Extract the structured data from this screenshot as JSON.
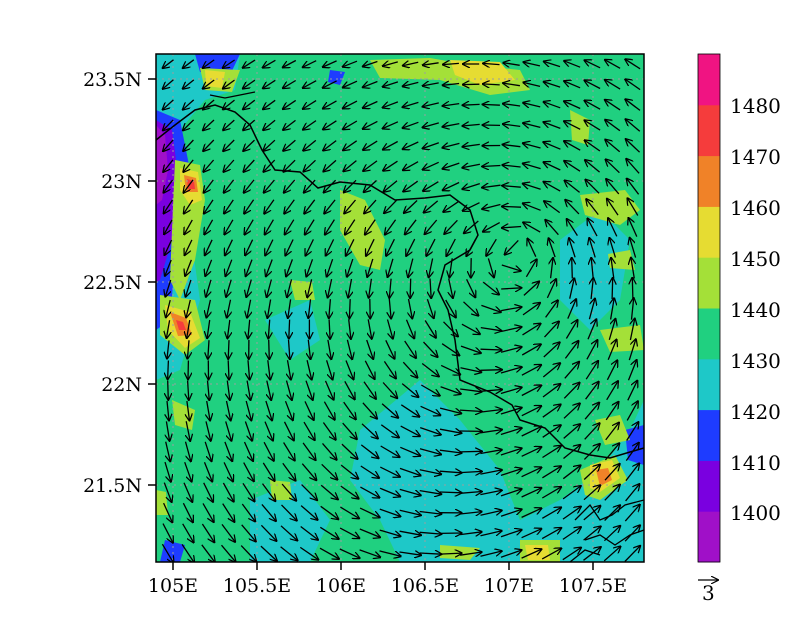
{
  "map": {
    "lon_ticks": [
      "105E",
      "105.5E",
      "106E",
      "106.5E",
      "107E",
      "107.5E"
    ],
    "lat_ticks": [
      "23.5N",
      "23N",
      "22.5N",
      "22N",
      "21.5N"
    ],
    "lon_range": [
      104.9,
      107.8
    ],
    "lat_range": [
      21.1,
      23.6
    ],
    "background_color": "#20d080"
  },
  "colorbar": {
    "labels": [
      "1400",
      "1410",
      "1420",
      "1430",
      "1440",
      "1450",
      "1460",
      "1470",
      "1480"
    ],
    "colors": [
      "#a010c8",
      "#7a00e0",
      "#1e3cff",
      "#1ec8c8",
      "#20d080",
      "#a4e038",
      "#e6dc32",
      "#f08228",
      "#f53c3c",
      "#f01482"
    ]
  },
  "vector_reference": {
    "label": "3"
  }
}
